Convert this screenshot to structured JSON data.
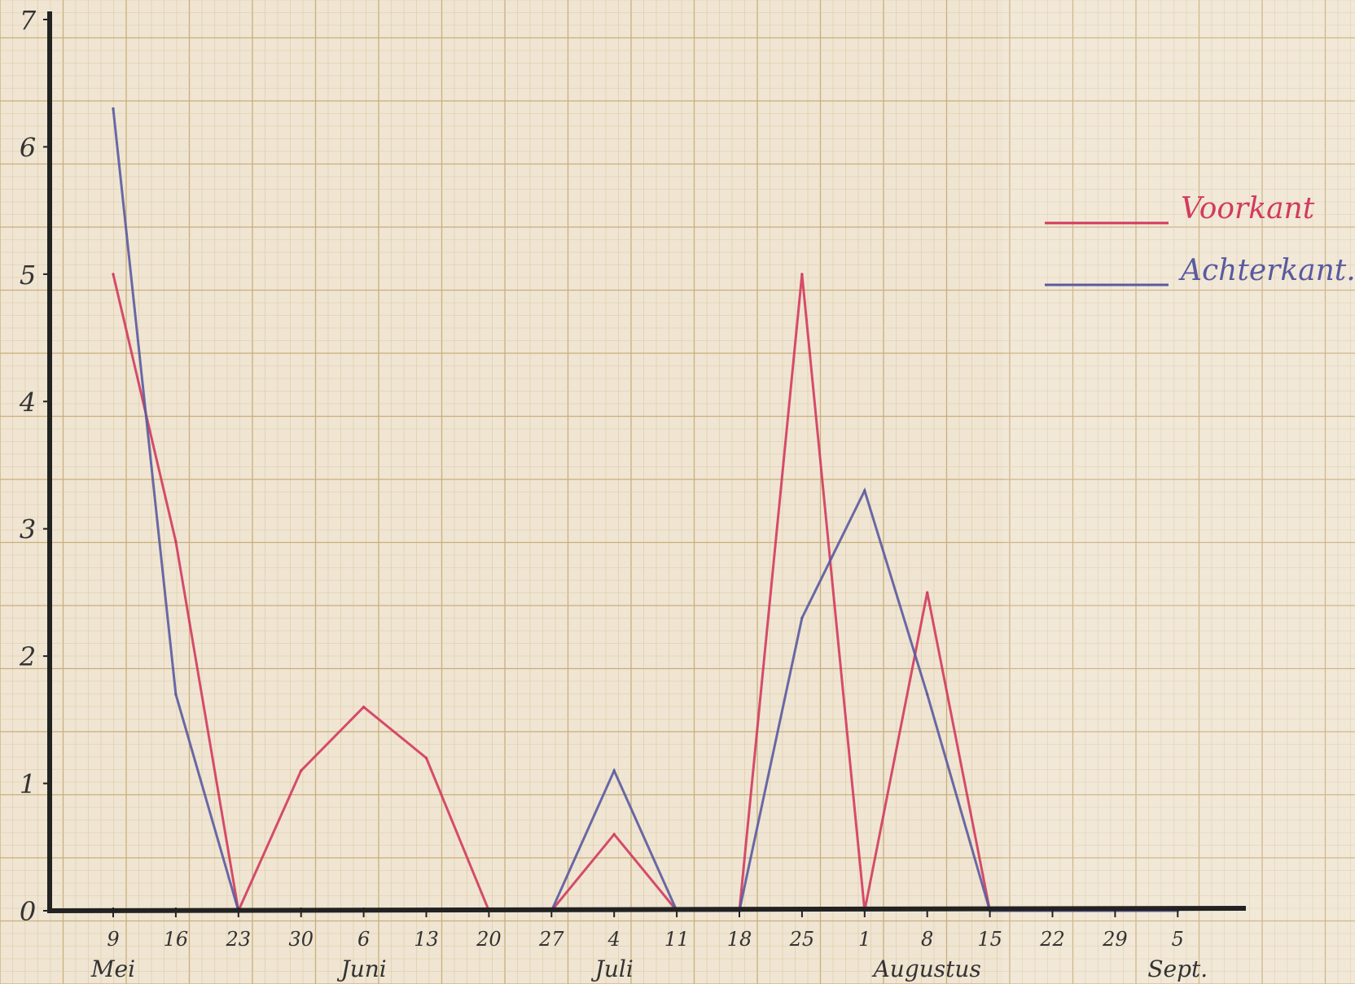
{
  "chart_data": {
    "type": "line",
    "title": "",
    "xlabel": "",
    "ylabel": "",
    "ylim": [
      0,
      7
    ],
    "grid": true,
    "legend_position": "top-right",
    "yticks": [
      "0",
      "1",
      "2",
      "3",
      "4",
      "5",
      "6",
      "7"
    ],
    "x_ticks": [
      "9",
      "16",
      "23",
      "30",
      "6",
      "13",
      "20",
      "27",
      "4",
      "11",
      "18",
      "25",
      "1",
      "8",
      "15",
      "22",
      "29",
      "5"
    ],
    "month_labels": [
      {
        "label": "Mei",
        "tick_index": 0
      },
      {
        "label": "Juni",
        "tick_index": 4
      },
      {
        "label": "Juli",
        "tick_index": 8
      },
      {
        "label": "Augustus",
        "tick_index": 13
      },
      {
        "label": "Sept.",
        "tick_index": 17
      }
    ],
    "series": [
      {
        "name": "Voorkant",
        "color": "#d23a5e",
        "values": [
          5,
          2.9,
          0,
          1.1,
          1.6,
          1.2,
          0,
          0,
          0.6,
          0,
          0,
          5,
          0,
          2.5,
          0,
          0,
          0,
          0
        ]
      },
      {
        "name": "Achterkant.",
        "color": "#5a5aa0",
        "values": [
          6.3,
          1.7,
          0,
          0,
          0,
          0,
          0,
          0,
          1.1,
          0,
          0,
          2.3,
          3.3,
          1.7,
          0,
          0,
          0,
          0
        ]
      }
    ]
  },
  "colors": {
    "paper": "#efe5d2",
    "grid_major": "#c9ae7c",
    "grid_minor": "#ddc9a3",
    "axis": "#222222",
    "ink": "#333333"
  }
}
